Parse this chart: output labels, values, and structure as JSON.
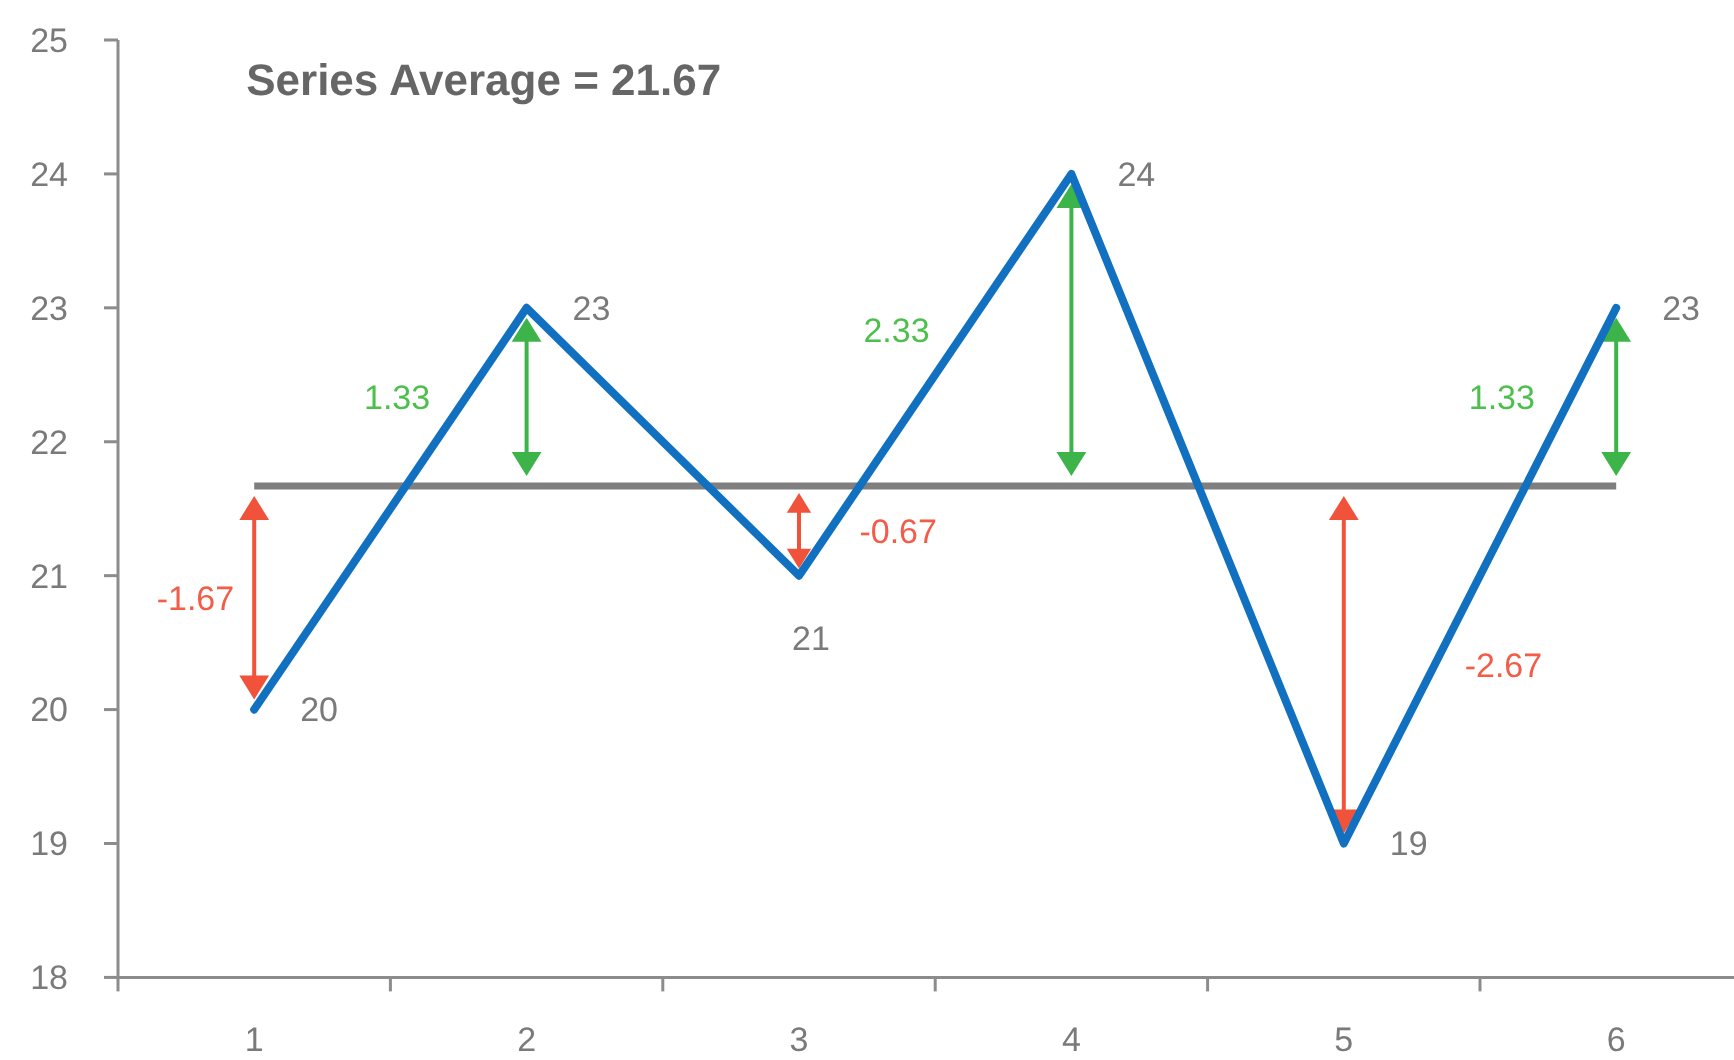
{
  "chart_data": {
    "type": "line",
    "title": "Series Average = 21.67",
    "categories": [
      "1",
      "2",
      "3",
      "4",
      "5",
      "6"
    ],
    "series": [
      {
        "color": "#1170bf",
        "values": [
          20,
          23,
          21,
          24,
          19,
          23
        ]
      }
    ],
    "ylim": [
      18,
      25
    ],
    "yticks": [
      18,
      19,
      20,
      21,
      22,
      23,
      24,
      25
    ],
    "data_labels": true,
    "ref_lines": [
      {
        "axis": "y",
        "value": 21.67,
        "color": "#7f7f7f"
      }
    ],
    "annotations": [
      "-1.67",
      "1.33",
      "-0.67",
      "2.33",
      "-2.67",
      "1.33"
    ]
  }
}
